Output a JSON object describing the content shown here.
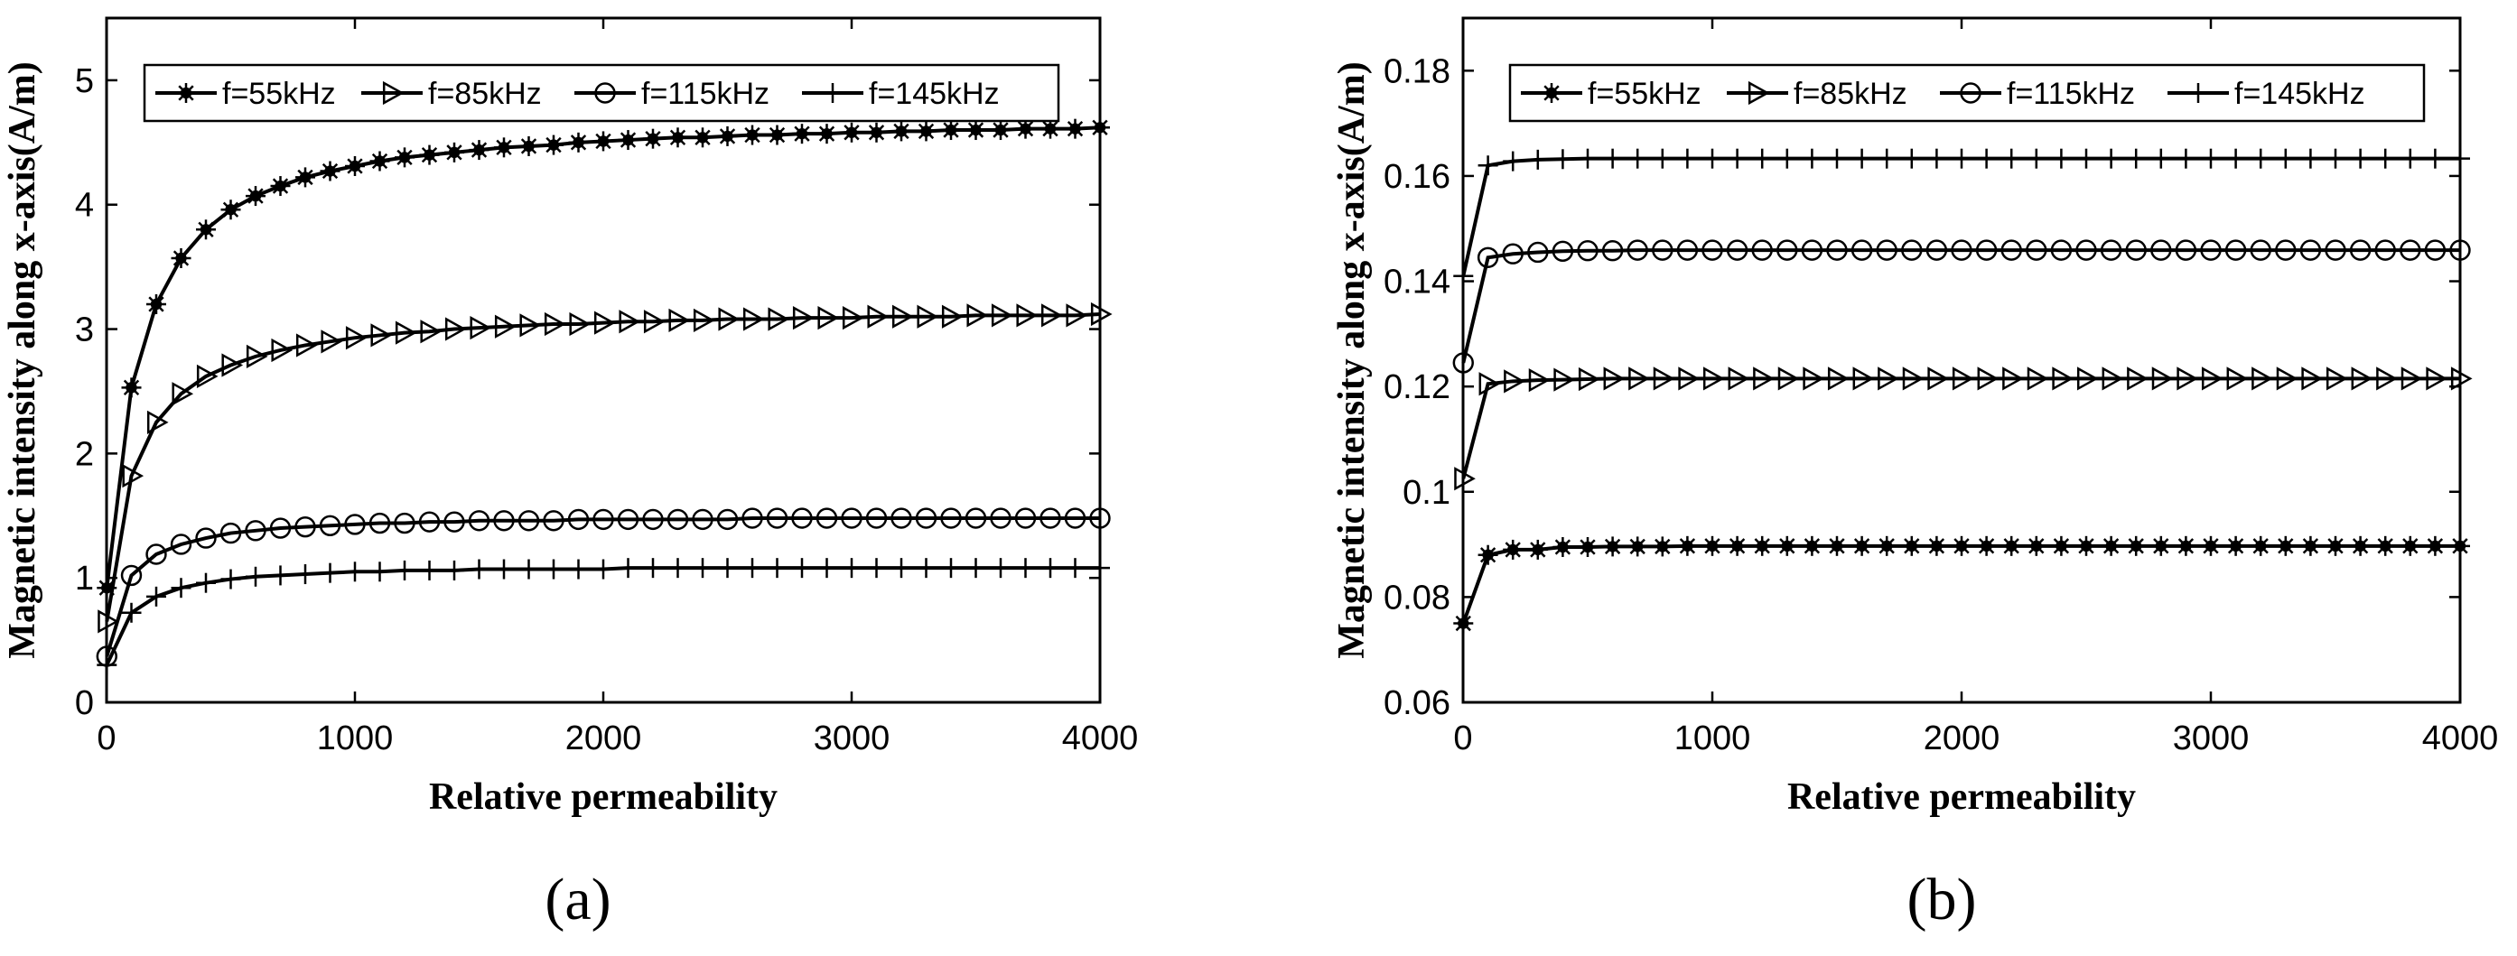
{
  "chart_data": [
    {
      "type": "line",
      "panel_label": "(a)",
      "xlabel": "Relative permeability",
      "ylabel": "Magnetic intensity along x-axis(A/m)",
      "xlim": [
        0,
        4000
      ],
      "ylim": [
        0,
        5.5
      ],
      "xticks": [
        0,
        1000,
        2000,
        3000,
        4000
      ],
      "yticks": [
        0,
        1,
        2,
        3,
        4,
        5
      ],
      "ytick_labels": [
        "0",
        "1",
        "2",
        "3",
        "4",
        "5"
      ],
      "legend_position": "top",
      "x": [
        1,
        100,
        200,
        300,
        400,
        500,
        600,
        700,
        800,
        900,
        1000,
        1100,
        1200,
        1300,
        1400,
        1500,
        1600,
        1700,
        1800,
        1900,
        2000,
        2100,
        2200,
        2300,
        2400,
        2500,
        2600,
        2700,
        2800,
        2900,
        3000,
        3100,
        3200,
        3300,
        3400,
        3500,
        3600,
        3700,
        3800,
        3900,
        4000
      ],
      "series": [
        {
          "name": "f=55kHz",
          "marker": "asterisk",
          "values": [
            0.92,
            2.53,
            3.2,
            3.57,
            3.8,
            3.96,
            4.07,
            4.15,
            4.22,
            4.27,
            4.31,
            4.35,
            4.38,
            4.4,
            4.42,
            4.44,
            4.46,
            4.47,
            4.48,
            4.5,
            4.51,
            4.52,
            4.53,
            4.54,
            4.54,
            4.55,
            4.56,
            4.56,
            4.57,
            4.57,
            4.58,
            4.58,
            4.59,
            4.59,
            4.6,
            4.6,
            4.6,
            4.61,
            4.61,
            4.61,
            4.62
          ]
        },
        {
          "name": "f=85kHz",
          "marker": "triangle-right",
          "values": [
            0.65,
            1.82,
            2.25,
            2.48,
            2.62,
            2.71,
            2.78,
            2.83,
            2.87,
            2.9,
            2.93,
            2.95,
            2.97,
            2.98,
            3.0,
            3.01,
            3.02,
            3.03,
            3.04,
            3.04,
            3.05,
            3.06,
            3.06,
            3.07,
            3.07,
            3.08,
            3.08,
            3.08,
            3.09,
            3.09,
            3.09,
            3.1,
            3.1,
            3.1,
            3.1,
            3.11,
            3.11,
            3.11,
            3.11,
            3.11,
            3.12
          ]
        },
        {
          "name": "f=115kHz",
          "marker": "circle",
          "values": [
            0.37,
            1.02,
            1.19,
            1.27,
            1.32,
            1.36,
            1.38,
            1.4,
            1.41,
            1.42,
            1.43,
            1.44,
            1.44,
            1.45,
            1.45,
            1.46,
            1.46,
            1.46,
            1.46,
            1.47,
            1.47,
            1.47,
            1.47,
            1.47,
            1.47,
            1.47,
            1.48,
            1.48,
            1.48,
            1.48,
            1.48,
            1.48,
            1.48,
            1.48,
            1.48,
            1.48,
            1.48,
            1.48,
            1.48,
            1.48,
            1.48
          ]
        },
        {
          "name": "f=145kHz",
          "marker": "plus",
          "values": [
            0.3,
            0.72,
            0.85,
            0.92,
            0.96,
            0.99,
            1.01,
            1.02,
            1.03,
            1.04,
            1.05,
            1.05,
            1.06,
            1.06,
            1.06,
            1.07,
            1.07,
            1.07,
            1.07,
            1.07,
            1.07,
            1.08,
            1.08,
            1.08,
            1.08,
            1.08,
            1.08,
            1.08,
            1.08,
            1.08,
            1.08,
            1.08,
            1.08,
            1.08,
            1.08,
            1.08,
            1.08,
            1.08,
            1.08,
            1.08,
            1.08
          ]
        }
      ]
    },
    {
      "type": "line",
      "panel_label": "(b)",
      "xlabel": "Relative permeability",
      "ylabel": "Magnetic intensity along x-axis(A/m)",
      "xlim": [
        0,
        4000
      ],
      "ylim": [
        0.06,
        0.19
      ],
      "xticks": [
        0,
        1000,
        2000,
        3000,
        4000
      ],
      "yticks": [
        0.06,
        0.08,
        0.1,
        0.12,
        0.14,
        0.16,
        0.18
      ],
      "ytick_labels": [
        "0.06",
        "0.08",
        "0.1",
        "0.12",
        "0.14",
        "0.16",
        "0.18"
      ],
      "legend_position": "top",
      "x": [
        1,
        100,
        200,
        300,
        400,
        500,
        600,
        700,
        800,
        900,
        1000,
        1100,
        1200,
        1300,
        1400,
        1500,
        1600,
        1700,
        1800,
        1900,
        2000,
        2100,
        2200,
        2300,
        2400,
        2500,
        2600,
        2700,
        2800,
        2900,
        3000,
        3100,
        3200,
        3300,
        3400,
        3500,
        3600,
        3700,
        3800,
        3900,
        4000
      ],
      "series": [
        {
          "name": "f=55kHz",
          "marker": "asterisk",
          "values": [
            0.075,
            0.088,
            0.089,
            0.089,
            0.0895,
            0.0895,
            0.0896,
            0.0896,
            0.0896,
            0.0897,
            0.0897,
            0.0897,
            0.0897,
            0.0897,
            0.0897,
            0.0897,
            0.0897,
            0.0897,
            0.0897,
            0.0897,
            0.0897,
            0.0897,
            0.0897,
            0.0897,
            0.0897,
            0.0897,
            0.0897,
            0.0897,
            0.0897,
            0.0897,
            0.0897,
            0.0897,
            0.0897,
            0.0897,
            0.0897,
            0.0897,
            0.0897,
            0.0897,
            0.0897,
            0.0897,
            0.0897
          ]
        },
        {
          "name": "f=85kHz",
          "marker": "triangle-right",
          "values": [
            0.1025,
            0.1205,
            0.121,
            0.1212,
            0.1213,
            0.1214,
            0.1215,
            0.1215,
            0.1215,
            0.1215,
            0.1215,
            0.1215,
            0.1215,
            0.1215,
            0.1215,
            0.1215,
            0.1215,
            0.1215,
            0.1215,
            0.1215,
            0.1215,
            0.1215,
            0.1215,
            0.1215,
            0.1215,
            0.1215,
            0.1215,
            0.1215,
            0.1215,
            0.1215,
            0.1215,
            0.1215,
            0.1215,
            0.1215,
            0.1215,
            0.1215,
            0.1215,
            0.1215,
            0.1215,
            0.1215,
            0.1215
          ]
        },
        {
          "name": "f=115kHz",
          "marker": "circle",
          "values": [
            0.1245,
            0.1445,
            0.1452,
            0.1455,
            0.1457,
            0.1458,
            0.1458,
            0.1459,
            0.1459,
            0.1459,
            0.1459,
            0.1459,
            0.1459,
            0.1459,
            0.1459,
            0.1459,
            0.1459,
            0.1459,
            0.1459,
            0.1459,
            0.1459,
            0.1459,
            0.1459,
            0.1459,
            0.1459,
            0.1459,
            0.1459,
            0.1459,
            0.1459,
            0.1459,
            0.1459,
            0.1459,
            0.1459,
            0.1459,
            0.1459,
            0.1459,
            0.1459,
            0.1459,
            0.1459,
            0.1459,
            0.1459
          ]
        },
        {
          "name": "f=145kHz",
          "marker": "plus",
          "values": [
            0.141,
            0.162,
            0.1628,
            0.1631,
            0.1632,
            0.1633,
            0.1633,
            0.1633,
            0.1633,
            0.1633,
            0.1633,
            0.1633,
            0.1633,
            0.1633,
            0.1633,
            0.1633,
            0.1633,
            0.1633,
            0.1633,
            0.1633,
            0.1633,
            0.1633,
            0.1633,
            0.1633,
            0.1633,
            0.1633,
            0.1633,
            0.1633,
            0.1633,
            0.1633,
            0.1633,
            0.1633,
            0.1633,
            0.1633,
            0.1633,
            0.1633,
            0.1633,
            0.1633,
            0.1633,
            0.1633,
            0.1633
          ]
        }
      ]
    }
  ]
}
